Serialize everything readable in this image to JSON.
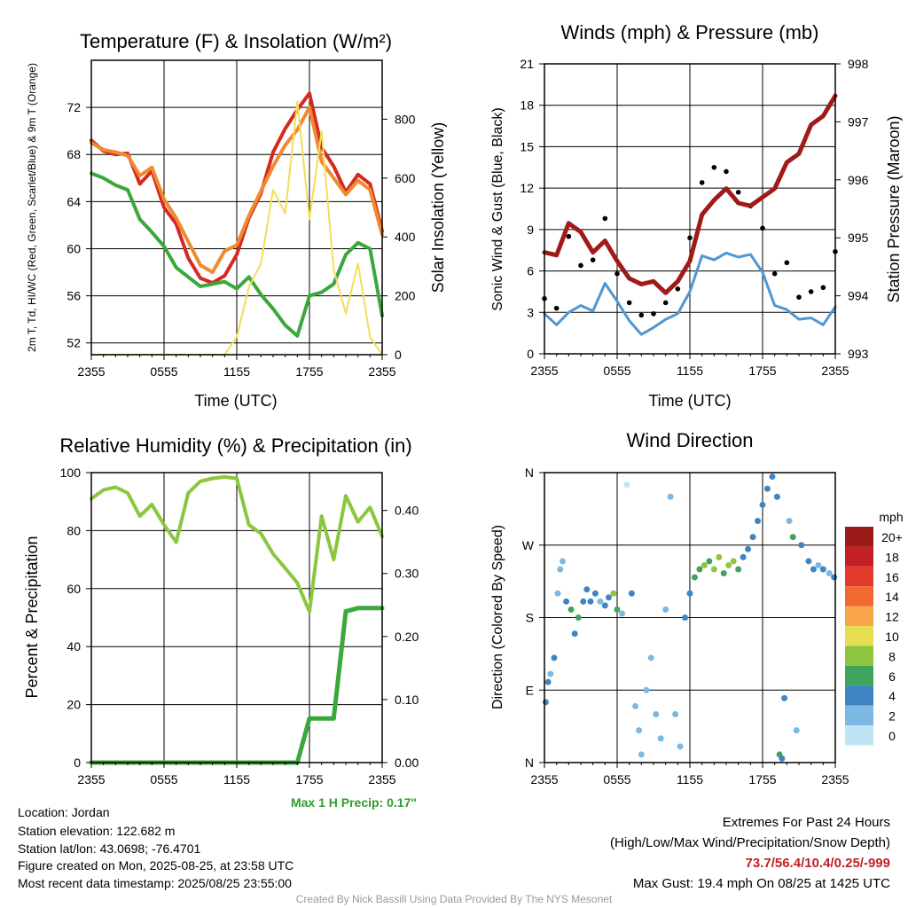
{
  "panels": {
    "temp": {
      "title": "Temperature (F) & Insolation (W/m²)",
      "ylabel": "2m T, Td, HI/WC (Red, Green, Scarlet/Blue) & 9m T (Orange)",
      "y2label": "Solar Insolation (Yellow)",
      "xlabel": "Time (UTC)"
    },
    "winds": {
      "title": "Winds (mph) & Pressure (mb)",
      "ylabel": "Sonic Wind & Gust (Blue, Black)",
      "y2label": "Station Pressure (Maroon)",
      "xlabel": "Time (UTC)"
    },
    "rh": {
      "title": "Relative Humidity (%) & Precipitation (in)",
      "ylabel": "Percent & Precipitation",
      "max_precip": "Max 1 H Precip: 0.17\""
    },
    "wdir": {
      "title": "Wind Direction",
      "ylabel": "Direction (Colored By Speed)",
      "legend_title": "mph",
      "legend_labels": [
        "20+",
        "18",
        "16",
        "14",
        "12",
        "10",
        "8",
        "6",
        "4",
        "2",
        "0"
      ]
    }
  },
  "info": {
    "location": "Location: Jordan",
    "elevation": "Station elevation: 122.682 m",
    "latlon": "Station lat/lon: 43.0698; -76.4701",
    "created": "Figure created on Mon, 2025-08-25, at 23:58 UTC",
    "recent": "Most recent data timestamp: 2025/08/25 23:55:00"
  },
  "extremes": {
    "title": "Extremes For Past 24 Hours",
    "subtitle": "(High/Low/Max Wind/Precipitation/Snow Depth)",
    "values": "73.7/56.4/10.4/0.25/-999",
    "gust": "Max Gust: 19.4 mph On 08/25 at 1425 UTC"
  },
  "credit": "Created By Nick Bassill Using Data Provided By The NYS Mesonet",
  "colors": {
    "temp": "#d42a22",
    "temp9m": "#f08a30",
    "dew": "#3aa83a",
    "solar": "#f3dd5c",
    "wind": "#4f97d3",
    "gust": "#000000",
    "pressure": "#a11a1a",
    "rh": "#8cc63f",
    "precip": "#3aa83a"
  },
  "chart_data": [
    {
      "type": "line",
      "title": "Temperature (F) & Insolation (W/m²)",
      "xlabel": "Time (UTC)",
      "ylabel": "2m T, Td, HI/WC (Red, Green, Scarlet/Blue) & 9m T (Orange)",
      "y2label": "Solar Insolation (Yellow)",
      "x_ticks": [
        "2355",
        "0555",
        "1155",
        "1755",
        "2355"
      ],
      "ylim": [
        51,
        76
      ],
      "y_ticks": [
        52,
        56,
        60,
        64,
        68,
        72
      ],
      "y2lim": [
        0,
        1000
      ],
      "y2_ticks": [
        0,
        200,
        400,
        600,
        800
      ],
      "x_hours": [
        0,
        1,
        2,
        3,
        4,
        5,
        6,
        7,
        8,
        9,
        10,
        11,
        12,
        13,
        14,
        15,
        16,
        17,
        18,
        19,
        20,
        21,
        22,
        23,
        24
      ],
      "series": [
        {
          "name": "2m T",
          "axis": "left",
          "color": "#d42a22",
          "values": [
            69.2,
            68.3,
            68.0,
            68.1,
            65.5,
            66.6,
            63.5,
            62.1,
            59.2,
            57.5,
            57.1,
            57.7,
            59.5,
            62.6,
            64.7,
            68.2,
            70.2,
            71.8,
            73.2,
            68.6,
            67.0,
            64.8,
            66.3,
            65.5,
            61.5
          ]
        },
        {
          "name": "9m T",
          "axis": "left",
          "color": "#f08a30",
          "values": [
            69.0,
            68.4,
            68.2,
            67.9,
            66.2,
            66.9,
            64.2,
            62.6,
            60.6,
            58.6,
            58.0,
            59.8,
            60.3,
            62.8,
            64.9,
            67.0,
            68.8,
            70.1,
            72.0,
            67.4,
            66.0,
            64.6,
            65.8,
            65.0,
            61.2
          ]
        },
        {
          "name": "Td",
          "axis": "left",
          "color": "#3aa83a",
          "values": [
            66.4,
            66.0,
            65.4,
            65.0,
            62.5,
            61.4,
            60.2,
            58.4,
            57.6,
            56.8,
            57.0,
            57.2,
            56.6,
            57.6,
            56.1,
            54.9,
            53.5,
            52.6,
            56.0,
            56.3,
            57.0,
            59.5,
            60.5,
            60.0,
            54.3
          ]
        },
        {
          "name": "Solar Insolation",
          "axis": "right",
          "color": "#f3dd5c",
          "values": [
            0,
            0,
            0,
            0,
            0,
            0,
            0,
            0,
            0,
            0,
            0,
            0,
            60,
            230,
            310,
            560,
            480,
            860,
            460,
            760,
            290,
            140,
            310,
            60,
            0
          ]
        }
      ]
    },
    {
      "type": "line",
      "title": "Winds (mph) & Pressure (mb)",
      "xlabel": "Time (UTC)",
      "ylabel": "Sonic Wind & Gust (Blue, Black)",
      "y2label": "Station Pressure (Maroon)",
      "x_ticks": [
        "2355",
        "0555",
        "1155",
        "1755",
        "2355"
      ],
      "ylim": [
        0,
        21
      ],
      "y_ticks": [
        0,
        3,
        6,
        9,
        12,
        15,
        18,
        21
      ],
      "y2lim": [
        993,
        998
      ],
      "y2_ticks": [
        993,
        994,
        995,
        996,
        997,
        998
      ],
      "x_hours": [
        0,
        1,
        2,
        3,
        4,
        5,
        6,
        7,
        8,
        9,
        10,
        11,
        12,
        13,
        14,
        15,
        16,
        17,
        18,
        19,
        20,
        21,
        22,
        23,
        24
      ],
      "series": [
        {
          "name": "Wind",
          "axis": "left",
          "color": "#4f97d3",
          "values": [
            2.9,
            2.1,
            3.0,
            3.5,
            3.1,
            5.1,
            3.8,
            2.4,
            1.4,
            1.9,
            2.5,
            2.9,
            4.5,
            7.1,
            6.8,
            7.3,
            7.0,
            7.2,
            5.9,
            3.5,
            3.2,
            2.5,
            2.6,
            2.1,
            3.4
          ]
        },
        {
          "name": "Gust",
          "axis": "left",
          "color": "#000000",
          "values": [
            4.0,
            3.3,
            8.5,
            6.4,
            6.8,
            9.8,
            5.8,
            3.7,
            2.8,
            2.9,
            3.7,
            4.7,
            8.4,
            12.4,
            13.5,
            13.2,
            11.7,
            10.7,
            9.1,
            5.8,
            6.6,
            4.1,
            4.5,
            4.8,
            7.4
          ]
        },
        {
          "name": "Station Pressure",
          "axis": "right",
          "color": "#a11a1a",
          "values": [
            994.75,
            994.7,
            995.25,
            995.1,
            994.75,
            994.95,
            994.6,
            994.3,
            994.2,
            994.25,
            994.05,
            994.25,
            994.6,
            995.4,
            995.65,
            995.85,
            995.6,
            995.55,
            995.7,
            995.85,
            996.3,
            996.45,
            996.95,
            997.1,
            997.45
          ]
        }
      ]
    },
    {
      "type": "line",
      "title": "Relative Humidity (%) & Precipitation (in)",
      "ylabel": "Percent & Precipitation",
      "x_ticks": [
        "2355",
        "0555",
        "1155",
        "1755",
        "2355"
      ],
      "ylim": [
        0,
        100
      ],
      "y_ticks": [
        0,
        20,
        40,
        60,
        80,
        100
      ],
      "y2lim": [
        0,
        0.46
      ],
      "y2_ticks": [
        0.0,
        0.1,
        0.2,
        0.3,
        0.4
      ],
      "x_hours": [
        0,
        1,
        2,
        3,
        4,
        5,
        6,
        7,
        8,
        9,
        10,
        11,
        12,
        13,
        14,
        15,
        16,
        17,
        18,
        19,
        20,
        21,
        22,
        23,
        24
      ],
      "series": [
        {
          "name": "Relative Humidity",
          "axis": "left",
          "color": "#8cc63f",
          "values": [
            91,
            94,
            95,
            93,
            85,
            89,
            82,
            76,
            93,
            97,
            98,
            98.5,
            98,
            82,
            79,
            72,
            67,
            62,
            52,
            85,
            70,
            92,
            83,
            88,
            78
          ]
        },
        {
          "name": "Precipitation",
          "axis": "right",
          "color": "#3aa83a",
          "values": [
            0,
            0,
            0,
            0,
            0,
            0,
            0,
            0,
            0,
            0,
            0,
            0,
            0,
            0,
            0,
            0,
            0,
            0,
            0.07,
            0.07,
            0.07,
            0.24,
            0.245,
            0.245,
            0.245
          ]
        }
      ]
    },
    {
      "type": "scatter",
      "title": "Wind Direction",
      "ylabel": "Direction (Colored By Speed)",
      "x_ticks": [
        "2355",
        "0555",
        "1155",
        "1755",
        "2355"
      ],
      "y_ticks": [
        "N",
        "E",
        "S",
        "W",
        "N"
      ],
      "ylim": [
        0,
        360
      ],
      "legend_title": "mph",
      "legend": [
        {
          "label": "20+",
          "color": "#9b1b1b"
        },
        {
          "label": "18",
          "color": "#c22025"
        },
        {
          "label": "16",
          "color": "#e03a2a"
        },
        {
          "label": "14",
          "color": "#f2692f"
        },
        {
          "label": "12",
          "color": "#f7a44a"
        },
        {
          "label": "10",
          "color": "#e7de52"
        },
        {
          "label": "8",
          "color": "#8ec63f"
        },
        {
          "label": "6",
          "color": "#3fa45d"
        },
        {
          "label": "4",
          "color": "#3f85c2"
        },
        {
          "label": "2",
          "color": "#7db8e4"
        },
        {
          "label": "0",
          "color": "#bfe4f5"
        }
      ],
      "points": [
        {
          "x": 0.1,
          "dir": 75,
          "speed": 3
        },
        {
          "x": 0.3,
          "dir": 100,
          "speed": 3
        },
        {
          "x": 0.5,
          "dir": 110,
          "speed": 2
        },
        {
          "x": 0.8,
          "dir": 130,
          "speed": 3
        },
        {
          "x": 1.1,
          "dir": 210,
          "speed": 2
        },
        {
          "x": 1.3,
          "dir": 240,
          "speed": 2
        },
        {
          "x": 1.5,
          "dir": 250,
          "speed": 2
        },
        {
          "x": 1.8,
          "dir": 200,
          "speed": 3
        },
        {
          "x": 2.2,
          "dir": 190,
          "speed": 5
        },
        {
          "x": 2.5,
          "dir": 160,
          "speed": 4
        },
        {
          "x": 2.8,
          "dir": 180,
          "speed": 6
        },
        {
          "x": 3.2,
          "dir": 200,
          "speed": 4
        },
        {
          "x": 3.5,
          "dir": 215,
          "speed": 4
        },
        {
          "x": 3.8,
          "dir": 200,
          "speed": 3
        },
        {
          "x": 4.2,
          "dir": 210,
          "speed": 3
        },
        {
          "x": 4.6,
          "dir": 200,
          "speed": 2
        },
        {
          "x": 5.0,
          "dir": 195,
          "speed": 3
        },
        {
          "x": 5.3,
          "dir": 205,
          "speed": 4
        },
        {
          "x": 5.7,
          "dir": 210,
          "speed": 7
        },
        {
          "x": 6.0,
          "dir": 190,
          "speed": 6
        },
        {
          "x": 6.4,
          "dir": 185,
          "speed": 2
        },
        {
          "x": 6.8,
          "dir": 345,
          "speed": 0
        },
        {
          "x": 7.2,
          "dir": 210,
          "speed": 3
        },
        {
          "x": 7.5,
          "dir": 70,
          "speed": 2
        },
        {
          "x": 7.8,
          "dir": 40,
          "speed": 1
        },
        {
          "x": 8.0,
          "dir": 10,
          "speed": 2
        },
        {
          "x": 8.4,
          "dir": 90,
          "speed": 2
        },
        {
          "x": 8.8,
          "dir": 130,
          "speed": 2
        },
        {
          "x": 9.2,
          "dir": 60,
          "speed": 1
        },
        {
          "x": 9.6,
          "dir": 30,
          "speed": 2
        },
        {
          "x": 10.0,
          "dir": 190,
          "speed": 2
        },
        {
          "x": 10.4,
          "dir": 330,
          "speed": 1
        },
        {
          "x": 10.8,
          "dir": 60,
          "speed": 2
        },
        {
          "x": 11.2,
          "dir": 20,
          "speed": 2
        },
        {
          "x": 11.6,
          "dir": 180,
          "speed": 3
        },
        {
          "x": 12.0,
          "dir": 210,
          "speed": 4
        },
        {
          "x": 12.4,
          "dir": 230,
          "speed": 5
        },
        {
          "x": 12.8,
          "dir": 240,
          "speed": 6
        },
        {
          "x": 13.2,
          "dir": 245,
          "speed": 8
        },
        {
          "x": 13.6,
          "dir": 250,
          "speed": 6
        },
        {
          "x": 14.0,
          "dir": 240,
          "speed": 7
        },
        {
          "x": 14.4,
          "dir": 255,
          "speed": 8
        },
        {
          "x": 14.8,
          "dir": 235,
          "speed": 6
        },
        {
          "x": 15.2,
          "dir": 245,
          "speed": 7
        },
        {
          "x": 15.6,
          "dir": 250,
          "speed": 8
        },
        {
          "x": 16.0,
          "dir": 240,
          "speed": 6
        },
        {
          "x": 16.4,
          "dir": 255,
          "speed": 4
        },
        {
          "x": 16.8,
          "dir": 265,
          "speed": 3
        },
        {
          "x": 17.2,
          "dir": 280,
          "speed": 4
        },
        {
          "x": 17.6,
          "dir": 300,
          "speed": 4
        },
        {
          "x": 18.0,
          "dir": 320,
          "speed": 3
        },
        {
          "x": 18.4,
          "dir": 340,
          "speed": 4
        },
        {
          "x": 18.8,
          "dir": 355,
          "speed": 4
        },
        {
          "x": 19.2,
          "dir": 330,
          "speed": 3
        },
        {
          "x": 19.4,
          "dir": 10,
          "speed": 6
        },
        {
          "x": 19.6,
          "dir": 5,
          "speed": 3
        },
        {
          "x": 19.8,
          "dir": 80,
          "speed": 3
        },
        {
          "x": 20.2,
          "dir": 300,
          "speed": 2
        },
        {
          "x": 20.5,
          "dir": 280,
          "speed": 5
        },
        {
          "x": 20.8,
          "dir": 40,
          "speed": 2
        },
        {
          "x": 21.2,
          "dir": 270,
          "speed": 4
        },
        {
          "x": 21.8,
          "dir": 250,
          "speed": 3
        },
        {
          "x": 22.2,
          "dir": 240,
          "speed": 4
        },
        {
          "x": 22.6,
          "dir": 245,
          "speed": 2
        },
        {
          "x": 23.0,
          "dir": 240,
          "speed": 4
        },
        {
          "x": 23.5,
          "dir": 235,
          "speed": 2
        },
        {
          "x": 23.9,
          "dir": 230,
          "speed": 3
        }
      ]
    }
  ]
}
